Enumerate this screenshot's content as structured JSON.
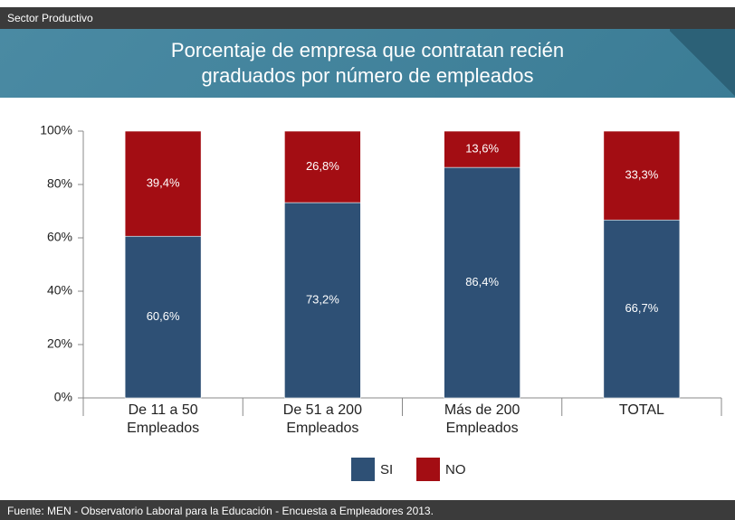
{
  "header": {
    "section": "Sector Productivo"
  },
  "chart_data": {
    "type": "stacked_bar",
    "title": "Porcentaje de empresa que contratan recién graduados por número de empleados",
    "categories": [
      "De 11 a 50 Empleados",
      "De 51 a 200 Empleados",
      "Más de 200 Empleados",
      "TOTAL"
    ],
    "series": [
      {
        "name": "SI",
        "color": "#2e5075",
        "values": [
          60.6,
          73.2,
          86.4,
          66.7
        ],
        "value_labels": [
          "60,6%",
          "73,2%",
          "86,4%",
          "66,7%"
        ]
      },
      {
        "name": "NO",
        "color": "#a30d13",
        "values": [
          39.4,
          26.8,
          13.6,
          33.3
        ],
        "value_labels": [
          "39,4%",
          "26,8%",
          "13,6%",
          "33,3%"
        ]
      }
    ],
    "ylim": [
      0,
      100
    ],
    "yticks": [
      {
        "value": 0,
        "label": "0%"
      },
      {
        "value": 20,
        "label": "20%"
      },
      {
        "value": 40,
        "label": "40%"
      },
      {
        "value": 60,
        "label": "60%"
      },
      {
        "value": 80,
        "label": "80%"
      },
      {
        "value": 100,
        "label": "100%"
      }
    ],
    "legend": "bottom"
  },
  "footer": {
    "source": "Fuente: MEN - Observatorio Laboral para la Educación - Encuesta a Empleadores 2013."
  }
}
